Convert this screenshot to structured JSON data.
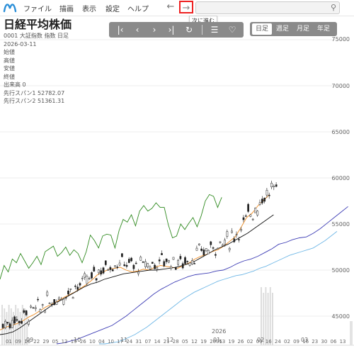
{
  "menu": {
    "items": [
      "ファイル",
      "描画",
      "表示",
      "設定",
      "ヘルプ"
    ],
    "back_glyph": "←",
    "forward_glyph": "→",
    "tooltip": "次に進む",
    "logo_icon": "brand-logo-icon",
    "search_icon": "search-icon"
  },
  "toolbar": {
    "icons": [
      "first-page-icon",
      "prev-icon",
      "next-icon",
      "last-page-icon",
      "refresh-icon",
      "list-icon",
      "favorite-add-icon"
    ],
    "glyphs": [
      "|‹",
      "‹",
      "›",
      "›|",
      "↻",
      "☰",
      "♡"
    ]
  },
  "periods": {
    "items": [
      "日足",
      "週足",
      "月足",
      "年足"
    ],
    "active": "日足"
  },
  "info": {
    "title": "日経平均株価",
    "code_line": "0001 大証指数 指数 日足",
    "date": "2026-03-11",
    "open": "始値",
    "high": "高値",
    "low": "安値",
    "close": "終値",
    "volume": "出来高 0",
    "span1": "先行スパン1 52782.07",
    "span2": "先行スパン2 51361.31"
  },
  "colors": {
    "up": "#ffffff",
    "down": "#222222",
    "tenkan": "#ef8a1e",
    "kijun": "#111111",
    "chikou": "#2f8a1f",
    "span1": "#3d3db5",
    "span2": "#6fb7e6",
    "accent": "#e22222"
  },
  "chart_data": {
    "type": "candlestick",
    "y_ticks": [
      "75000",
      "70000",
      "65000",
      "60000",
      "55000",
      "50000",
      "45000"
    ],
    "year_label": "2026",
    "x_ticks": [
      "01",
      "09",
      "16",
      "22",
      "29",
      "05",
      "12",
      "19",
      "26",
      "10",
      "04",
      "10",
      "17",
      "24",
      "31",
      "07",
      "14",
      "21",
      "28",
      "05",
      "12",
      "19",
      "2005",
      "13",
      "19",
      "26",
      "02",
      "09",
      "16",
      "24",
      "02",
      "09",
      "16",
      "23",
      "30",
      "06",
      "13"
    ],
    "month_labels": [
      "09",
      "10",
      "11",
      "12",
      "01",
      "02",
      "03"
    ],
    "ylim": [
      42000,
      76000
    ],
    "series": [
      {
        "name": "chikou",
        "values": [
          49000,
          50500,
          49800,
          51200,
          50800,
          51800,
          51000,
          50200,
          50800,
          51500,
          50600,
          52000,
          52300,
          52600,
          51500,
          51900,
          52500,
          51600,
          52200,
          51800,
          50800,
          52000,
          53800,
          53200,
          52400,
          53700,
          53900,
          53800,
          52400,
          54300,
          55500,
          55200,
          56000,
          54800,
          56400,
          57000,
          56400,
          56700,
          57300,
          56800,
          56800,
          54900,
          53500,
          53700,
          55000,
          54400,
          55100,
          55700,
          54700,
          55900,
          57500,
          58200,
          58000,
          56800,
          57900
        ]
      },
      {
        "name": "tenkan",
        "values": [
          43500,
          43800,
          44000,
          44200,
          44500,
          44900,
          45200,
          45600,
          46000,
          46300,
          46600,
          47000,
          47300,
          47600,
          48000,
          48400,
          48900,
          49500,
          49800,
          50100,
          50200,
          50300,
          50000,
          49800,
          49900,
          50100,
          50000,
          50300,
          50500,
          50400,
          50300,
          50200,
          50500,
          50800,
          51200,
          51500,
          51700,
          52000,
          52200,
          52600,
          53100,
          53600,
          54600,
          55700,
          56200,
          57000,
          57600,
          58200
        ]
      },
      {
        "name": "kijun",
        "values": [
          43000,
          43100,
          43300,
          43700,
          44200,
          44700,
          45200,
          45700,
          46200,
          46600,
          47000,
          47400,
          47800,
          48200,
          48500,
          48700,
          49000,
          49200,
          49400,
          49600,
          49700,
          49800,
          49900,
          50000,
          50000,
          50100,
          50200,
          50300,
          50500,
          50700,
          51000,
          51400,
          51800,
          52200,
          52500,
          52800,
          53200,
          53600,
          54000,
          54500,
          55000,
          55500,
          56000
        ]
      },
      {
        "name": "span1",
        "values": [
          42000,
          42100,
          42300,
          42500,
          42800,
          43100,
          43400,
          43700,
          44000,
          44500,
          45000,
          45600,
          46200,
          46800,
          47400,
          47900,
          48300,
          48700,
          49000,
          49300,
          49500,
          49600,
          49700,
          49900,
          50000,
          50300,
          50700,
          51000,
          51200,
          51500,
          51900,
          52300,
          52800,
          53000,
          53300,
          53500,
          53600,
          54000,
          54500,
          55100,
          55700,
          56300,
          56900
        ]
      },
      {
        "name": "span2",
        "values": [
          42000,
          42000,
          42100,
          42200,
          42400,
          42700,
          43000,
          43400,
          43800,
          44300,
          44800,
          45300,
          45800,
          46300,
          46800,
          47200,
          47600,
          47900,
          48200,
          48500,
          48800,
          49000,
          49200,
          49400,
          49500,
          49700,
          49900,
          50200,
          50400,
          50700,
          51000,
          51300,
          51600,
          51800,
          52000,
          52200,
          52400,
          52800,
          53200,
          53700,
          54200
        ]
      }
    ]
  }
}
